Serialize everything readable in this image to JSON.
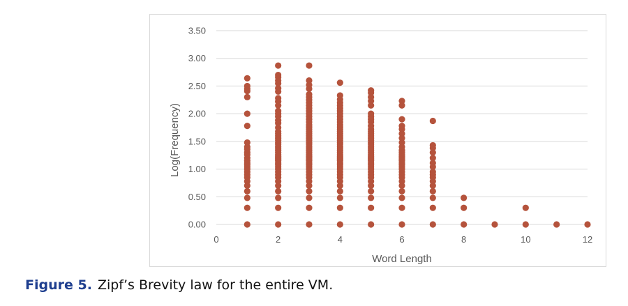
{
  "caption": {
    "label": "Figure 5.",
    "text": "Zipf’s Brevity law for the entire VM."
  },
  "colors": {
    "points": "#b5533c",
    "grid": "#d9d9d9",
    "axis_text": "#595959"
  },
  "chart_data": {
    "type": "scatter",
    "title": "",
    "xlabel": "Word Length",
    "ylabel": "Log(Frequency)",
    "xlim": [
      0,
      12
    ],
    "ylim": [
      0,
      3.5
    ],
    "x_ticks": [
      0,
      2,
      4,
      6,
      8,
      10,
      12
    ],
    "y_ticks": [
      "0.00",
      "0.50",
      "1.00",
      "1.50",
      "2.00",
      "2.50",
      "3.00",
      "3.50"
    ],
    "grid": "horizontal",
    "series": [
      {
        "points": [
          [
            1,
            0.0
          ],
          [
            1,
            0.3
          ],
          [
            1,
            0.48
          ],
          [
            1,
            0.6
          ],
          [
            1,
            0.7
          ],
          [
            1,
            0.78
          ],
          [
            1,
            0.85
          ],
          [
            1,
            0.9
          ],
          [
            1,
            0.95
          ],
          [
            1,
            1.0
          ],
          [
            1,
            1.04
          ],
          [
            1,
            1.08
          ],
          [
            1,
            1.11
          ],
          [
            1,
            1.15
          ],
          [
            1,
            1.2
          ],
          [
            1,
            1.26
          ],
          [
            1,
            1.3
          ],
          [
            1,
            1.36
          ],
          [
            1,
            1.4
          ],
          [
            1,
            1.48
          ],
          [
            1,
            1.78
          ],
          [
            1,
            2.0
          ],
          [
            1,
            2.3
          ],
          [
            1,
            2.41
          ],
          [
            1,
            2.45
          ],
          [
            1,
            2.5
          ],
          [
            1,
            2.64
          ],
          [
            2,
            0.0
          ],
          [
            2,
            0.3
          ],
          [
            2,
            0.48
          ],
          [
            2,
            0.6
          ],
          [
            2,
            0.7
          ],
          [
            2,
            0.78
          ],
          [
            2,
            0.85
          ],
          [
            2,
            0.9
          ],
          [
            2,
            0.95
          ],
          [
            2,
            1.0
          ],
          [
            2,
            1.04
          ],
          [
            2,
            1.08
          ],
          [
            2,
            1.11
          ],
          [
            2,
            1.15
          ],
          [
            2,
            1.18
          ],
          [
            2,
            1.2
          ],
          [
            2,
            1.23
          ],
          [
            2,
            1.26
          ],
          [
            2,
            1.3
          ],
          [
            2,
            1.34
          ],
          [
            2,
            1.38
          ],
          [
            2,
            1.41
          ],
          [
            2,
            1.45
          ],
          [
            2,
            1.48
          ],
          [
            2,
            1.52
          ],
          [
            2,
            1.56
          ],
          [
            2,
            1.6
          ],
          [
            2,
            1.64
          ],
          [
            2,
            1.68
          ],
          [
            2,
            1.75
          ],
          [
            2,
            1.83
          ],
          [
            2,
            1.88
          ],
          [
            2,
            1.95
          ],
          [
            2,
            2.0
          ],
          [
            2,
            2.05
          ],
          [
            2,
            2.15
          ],
          [
            2,
            2.22
          ],
          [
            2,
            2.28
          ],
          [
            2,
            2.4
          ],
          [
            2,
            2.46
          ],
          [
            2,
            2.55
          ],
          [
            2,
            2.6
          ],
          [
            2,
            2.66
          ],
          [
            2,
            2.7
          ],
          [
            2,
            2.87
          ],
          [
            3,
            0.0
          ],
          [
            3,
            0.3
          ],
          [
            3,
            0.48
          ],
          [
            3,
            0.6
          ],
          [
            3,
            0.7
          ],
          [
            3,
            0.78
          ],
          [
            3,
            0.85
          ],
          [
            3,
            0.9
          ],
          [
            3,
            0.95
          ],
          [
            3,
            1.0
          ],
          [
            3,
            1.04
          ],
          [
            3,
            1.08
          ],
          [
            3,
            1.11
          ],
          [
            3,
            1.15
          ],
          [
            3,
            1.18
          ],
          [
            3,
            1.2
          ],
          [
            3,
            1.23
          ],
          [
            3,
            1.26
          ],
          [
            3,
            1.3
          ],
          [
            3,
            1.34
          ],
          [
            3,
            1.38
          ],
          [
            3,
            1.41
          ],
          [
            3,
            1.45
          ],
          [
            3,
            1.48
          ],
          [
            3,
            1.52
          ],
          [
            3,
            1.56
          ],
          [
            3,
            1.6
          ],
          [
            3,
            1.64
          ],
          [
            3,
            1.68
          ],
          [
            3,
            1.72
          ],
          [
            3,
            1.76
          ],
          [
            3,
            1.8
          ],
          [
            3,
            1.85
          ],
          [
            3,
            1.9
          ],
          [
            3,
            1.95
          ],
          [
            3,
            2.0
          ],
          [
            3,
            2.05
          ],
          [
            3,
            2.1
          ],
          [
            3,
            2.15
          ],
          [
            3,
            2.2
          ],
          [
            3,
            2.25
          ],
          [
            3,
            2.3
          ],
          [
            3,
            2.35
          ],
          [
            3,
            2.45
          ],
          [
            3,
            2.52
          ],
          [
            3,
            2.6
          ],
          [
            3,
            2.87
          ],
          [
            4,
            0.0
          ],
          [
            4,
            0.3
          ],
          [
            4,
            0.48
          ],
          [
            4,
            0.6
          ],
          [
            4,
            0.7
          ],
          [
            4,
            0.78
          ],
          [
            4,
            0.85
          ],
          [
            4,
            0.9
          ],
          [
            4,
            0.95
          ],
          [
            4,
            1.0
          ],
          [
            4,
            1.04
          ],
          [
            4,
            1.08
          ],
          [
            4,
            1.11
          ],
          [
            4,
            1.15
          ],
          [
            4,
            1.18
          ],
          [
            4,
            1.2
          ],
          [
            4,
            1.23
          ],
          [
            4,
            1.26
          ],
          [
            4,
            1.3
          ],
          [
            4,
            1.34
          ],
          [
            4,
            1.38
          ],
          [
            4,
            1.41
          ],
          [
            4,
            1.45
          ],
          [
            4,
            1.48
          ],
          [
            4,
            1.52
          ],
          [
            4,
            1.56
          ],
          [
            4,
            1.6
          ],
          [
            4,
            1.64
          ],
          [
            4,
            1.68
          ],
          [
            4,
            1.72
          ],
          [
            4,
            1.76
          ],
          [
            4,
            1.8
          ],
          [
            4,
            1.85
          ],
          [
            4,
            1.9
          ],
          [
            4,
            1.95
          ],
          [
            4,
            2.0
          ],
          [
            4,
            2.05
          ],
          [
            4,
            2.1
          ],
          [
            4,
            2.15
          ],
          [
            4,
            2.2
          ],
          [
            4,
            2.26
          ],
          [
            4,
            2.33
          ],
          [
            4,
            2.56
          ],
          [
            5,
            0.0
          ],
          [
            5,
            0.3
          ],
          [
            5,
            0.48
          ],
          [
            5,
            0.6
          ],
          [
            5,
            0.7
          ],
          [
            5,
            0.78
          ],
          [
            5,
            0.85
          ],
          [
            5,
            0.9
          ],
          [
            5,
            0.95
          ],
          [
            5,
            1.0
          ],
          [
            5,
            1.04
          ],
          [
            5,
            1.08
          ],
          [
            5,
            1.11
          ],
          [
            5,
            1.15
          ],
          [
            5,
            1.18
          ],
          [
            5,
            1.2
          ],
          [
            5,
            1.23
          ],
          [
            5,
            1.26
          ],
          [
            5,
            1.3
          ],
          [
            5,
            1.34
          ],
          [
            5,
            1.38
          ],
          [
            5,
            1.41
          ],
          [
            5,
            1.45
          ],
          [
            5,
            1.48
          ],
          [
            5,
            1.52
          ],
          [
            5,
            1.56
          ],
          [
            5,
            1.6
          ],
          [
            5,
            1.64
          ],
          [
            5,
            1.68
          ],
          [
            5,
            1.72
          ],
          [
            5,
            1.78
          ],
          [
            5,
            1.85
          ],
          [
            5,
            1.9
          ],
          [
            5,
            1.95
          ],
          [
            5,
            2.0
          ],
          [
            5,
            2.15
          ],
          [
            5,
            2.23
          ],
          [
            5,
            2.3
          ],
          [
            5,
            2.38
          ],
          [
            5,
            2.42
          ],
          [
            6,
            0.0
          ],
          [
            6,
            0.3
          ],
          [
            6,
            0.48
          ],
          [
            6,
            0.6
          ],
          [
            6,
            0.7
          ],
          [
            6,
            0.78
          ],
          [
            6,
            0.85
          ],
          [
            6,
            0.9
          ],
          [
            6,
            0.95
          ],
          [
            6,
            1.0
          ],
          [
            6,
            1.04
          ],
          [
            6,
            1.08
          ],
          [
            6,
            1.11
          ],
          [
            6,
            1.15
          ],
          [
            6,
            1.18
          ],
          [
            6,
            1.2
          ],
          [
            6,
            1.23
          ],
          [
            6,
            1.26
          ],
          [
            6,
            1.3
          ],
          [
            6,
            1.34
          ],
          [
            6,
            1.4
          ],
          [
            6,
            1.48
          ],
          [
            6,
            1.56
          ],
          [
            6,
            1.64
          ],
          [
            6,
            1.72
          ],
          [
            6,
            1.78
          ],
          [
            6,
            1.9
          ],
          [
            6,
            2.15
          ],
          [
            6,
            2.23
          ],
          [
            7,
            0.0
          ],
          [
            7,
            0.3
          ],
          [
            7,
            0.48
          ],
          [
            7,
            0.6
          ],
          [
            7,
            0.7
          ],
          [
            7,
            0.78
          ],
          [
            7,
            0.85
          ],
          [
            7,
            0.9
          ],
          [
            7,
            0.95
          ],
          [
            7,
            1.04
          ],
          [
            7,
            1.11
          ],
          [
            7,
            1.2
          ],
          [
            7,
            1.3
          ],
          [
            7,
            1.38
          ],
          [
            7,
            1.43
          ],
          [
            7,
            1.87
          ],
          [
            8,
            0.0
          ],
          [
            8,
            0.3
          ],
          [
            8,
            0.48
          ],
          [
            9,
            0.0
          ],
          [
            10,
            0.0
          ],
          [
            10,
            0.3
          ],
          [
            11,
            0.0
          ],
          [
            12,
            0.0
          ]
        ]
      }
    ]
  }
}
